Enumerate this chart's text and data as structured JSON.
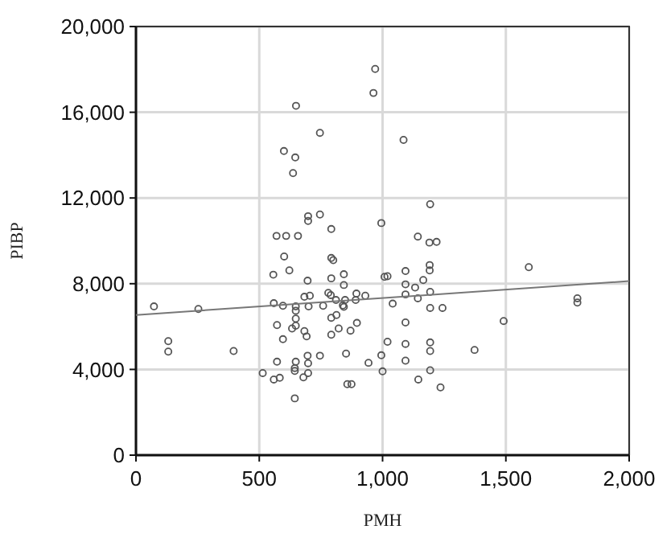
{
  "chart_data": {
    "type": "scatter",
    "xlabel": "PMH",
    "ylabel": "PIBP",
    "xlim": [
      0,
      2000
    ],
    "ylim": [
      0,
      20000
    ],
    "xticks": [
      0,
      500,
      {
        "value": 1000,
        "label": "1,000"
      },
      {
        "value": 1500,
        "label": "1,500"
      },
      {
        "value": 2000,
        "label": "2,000"
      }
    ],
    "yticks": [
      0,
      {
        "value": 4000,
        "label": "4,000"
      },
      {
        "value": 8000,
        "label": "8,000"
      },
      {
        "value": 12000,
        "label": "12,000"
      },
      {
        "value": 16000,
        "label": "16,000"
      },
      {
        "value": 20000,
        "label": "20,000"
      }
    ],
    "grid": true,
    "series": [
      {
        "marker": "circle",
        "color": "#555555",
        "x": [
          649,
          746,
          600,
          646,
          637,
          970,
          963,
          698,
          698,
          746,
          792,
          570,
          609,
          657,
          995,
          1085,
          1193,
          73,
          253,
          131,
          131,
          396,
          514,
          559,
          583,
          644,
          644,
          648,
          698,
          696,
          679,
          698,
          644,
          746,
          852,
          857,
          874,
          572,
          596,
          572,
          633,
          648,
          648,
          648,
          648,
          596,
          559,
          692,
          683,
          700,
          683,
          705,
          696,
          557,
          622,
          601,
          759,
          792,
          813,
          792,
          822,
          870,
          896,
          792,
          792,
          800,
          780,
          790,
          811,
          839,
          848,
          891,
          930,
          843,
          843,
          843,
          943,
          995,
          1000,
          1008,
          1143,
          1190,
          1219,
          1093,
          1020,
          1165,
          1191,
          1191,
          1093,
          1132,
          1193,
          1093,
          1143,
          1041,
          1193,
          1243,
          1093,
          1020,
          1093,
          1193,
          1193,
          1093,
          1193,
          1145,
          1235,
          1373,
          1491,
          1593,
          1790,
          1790,
          894
        ],
        "values": [
          16300,
          15040,
          14190,
          13890,
          13160,
          18020,
          16900,
          11150,
          10930,
          11230,
          10550,
          10230,
          10230,
          10230,
          10830,
          14710,
          11710,
          6940,
          6820,
          5320,
          4830,
          4860,
          3830,
          3530,
          3610,
          4060,
          3930,
          4360,
          4290,
          4640,
          3630,
          3830,
          2650,
          4640,
          4740,
          3310,
          3310,
          4360,
          5410,
          6070,
          5910,
          6040,
          6370,
          6740,
          6940,
          6970,
          7090,
          5540,
          5790,
          6940,
          7390,
          7440,
          8140,
          8420,
          8620,
          9270,
          6970,
          6410,
          6540,
          5620,
          5910,
          5810,
          6170,
          8250,
          9200,
          9100,
          7570,
          7470,
          7240,
          6990,
          7240,
          7240,
          7440,
          6920,
          8440,
          7940,
          4310,
          4660,
          3910,
          8320,
          10200,
          9920,
          9950,
          8590,
          8350,
          8170,
          8870,
          8620,
          7970,
          7820,
          7620,
          7500,
          7320,
          7070,
          6870,
          6870,
          6190,
          5290,
          5190,
          5260,
          4860,
          4410,
          3960,
          3530,
          3160,
          4910,
          6260,
          8770,
          7320,
          7120,
          7540
        ]
      },
      {
        "type": "line",
        "color": "#777777",
        "x": [
          0,
          2000
        ],
        "values": [
          6540,
          8120
        ]
      }
    ]
  }
}
